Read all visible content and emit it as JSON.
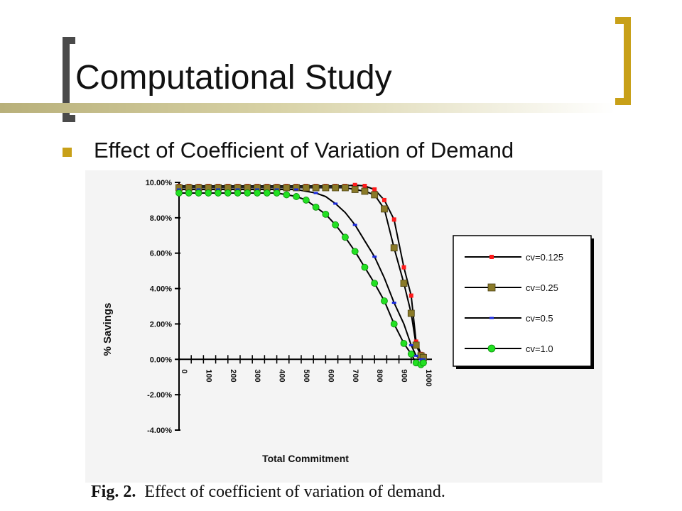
{
  "slide": {
    "title": "Computational Study",
    "bullet_text": "Effect of Coefficient of Variation of Demand",
    "caption_prefix": "Fig. 2.",
    "caption_text": "Effect of coefficient of variation of demand.",
    "colors": {
      "accent": "#c8a018",
      "bracket_dark": "#4a4a4a"
    }
  },
  "chart_data": {
    "type": "line",
    "xlabel": "Total Commitment",
    "ylabel": "% Savings",
    "categories": [
      "0",
      "100",
      "200",
      "300",
      "400",
      "500",
      "600",
      "700",
      "800",
      "900",
      "1000"
    ],
    "xlim": [
      0,
      1000
    ],
    "ylim": [
      -4,
      10
    ],
    "y_ticks": [
      "10.00%",
      "8.00%",
      "6.00%",
      "4.00%",
      "2.00%",
      "0.00%",
      "-2.00%",
      "-4.00%"
    ],
    "y_tick_values": [
      10,
      8,
      6,
      4,
      2,
      0,
      -2,
      -4
    ],
    "grid": false,
    "legend_position": "right",
    "series": [
      {
        "name": "cv=0.125",
        "color": "#ff1a1a",
        "marker": "square-small",
        "x": [
          0,
          40,
          80,
          120,
          160,
          200,
          240,
          280,
          320,
          360,
          400,
          440,
          480,
          520,
          560,
          600,
          640,
          680,
          720,
          760,
          800,
          840,
          880,
          920,
          950,
          970,
          990,
          1000
        ],
        "y": [
          9.8,
          9.8,
          9.8,
          9.8,
          9.8,
          9.8,
          9.8,
          9.8,
          9.8,
          9.8,
          9.8,
          9.8,
          9.8,
          9.8,
          9.8,
          9.8,
          9.8,
          9.8,
          9.85,
          9.8,
          9.6,
          9.0,
          7.9,
          5.2,
          3.6,
          1.0,
          0.3,
          0.2
        ]
      },
      {
        "name": "cv=0.25",
        "color": "#8a7a28",
        "marker": "square",
        "x": [
          0,
          40,
          80,
          120,
          160,
          200,
          240,
          280,
          320,
          360,
          400,
          440,
          480,
          520,
          560,
          600,
          640,
          680,
          720,
          760,
          800,
          840,
          880,
          920,
          950,
          970,
          990,
          1000
        ],
        "y": [
          9.7,
          9.7,
          9.7,
          9.7,
          9.7,
          9.7,
          9.7,
          9.7,
          9.7,
          9.7,
          9.7,
          9.7,
          9.7,
          9.7,
          9.7,
          9.7,
          9.7,
          9.7,
          9.6,
          9.5,
          9.3,
          8.5,
          6.3,
          4.3,
          2.6,
          0.8,
          0.2,
          0.1
        ]
      },
      {
        "name": "cv=0.5",
        "color": "#1a2adf",
        "marker": "dash",
        "x": [
          0,
          40,
          80,
          120,
          160,
          200,
          240,
          280,
          320,
          360,
          400,
          440,
          480,
          520,
          560,
          600,
          640,
          680,
          720,
          760,
          800,
          840,
          880,
          920,
          950,
          970,
          990,
          1000
        ],
        "y": [
          9.6,
          9.6,
          9.6,
          9.6,
          9.6,
          9.6,
          9.6,
          9.6,
          9.6,
          9.6,
          9.6,
          9.6,
          9.6,
          9.5,
          9.4,
          9.2,
          8.8,
          8.3,
          7.6,
          6.7,
          5.8,
          4.6,
          3.2,
          2.0,
          0.8,
          0.2,
          0.0,
          0.0
        ]
      },
      {
        "name": "cv=1.0",
        "color": "#22e022",
        "marker": "circle",
        "x": [
          0,
          40,
          80,
          120,
          160,
          200,
          240,
          280,
          320,
          360,
          400,
          440,
          480,
          520,
          560,
          600,
          640,
          680,
          720,
          760,
          800,
          840,
          880,
          920,
          950,
          970,
          990,
          1000
        ],
        "y": [
          9.4,
          9.4,
          9.4,
          9.4,
          9.4,
          9.4,
          9.4,
          9.4,
          9.4,
          9.4,
          9.4,
          9.3,
          9.2,
          9.0,
          8.6,
          8.2,
          7.6,
          6.9,
          6.1,
          5.2,
          4.3,
          3.3,
          2.0,
          0.9,
          0.3,
          -0.2,
          -0.3,
          -0.2
        ]
      }
    ]
  }
}
